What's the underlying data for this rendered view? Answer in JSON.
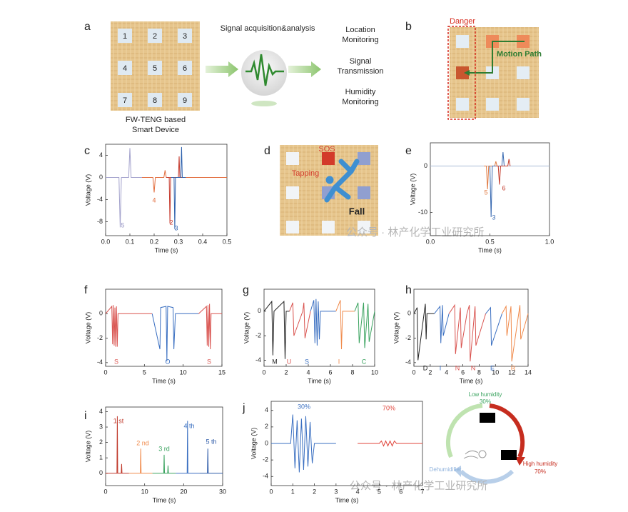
{
  "panel_labels": [
    "a",
    "b",
    "c",
    "d",
    "e",
    "f",
    "g",
    "h",
    "i",
    "j"
  ],
  "watermark": [
    "公众号 · 林产化学工业研究所",
    "公众号 · 林产化学工业研究所"
  ],
  "diagram_a": {
    "tiles": [
      "1",
      "2",
      "3",
      "4",
      "5",
      "6",
      "7",
      "8",
      "9"
    ],
    "device": [
      "FW-TENG based",
      "Smart Device"
    ],
    "process": "Signal acquisition&analysis",
    "outputs": [
      [
        "Location",
        "Monitoring"
      ],
      [
        "Signal",
        "Transmission"
      ],
      [
        "Humidity",
        "Monitoring"
      ]
    ]
  },
  "diagram_b": {
    "zone": "Danger",
    "path": "Motion Path"
  },
  "diagram_d": {
    "alarm": "SOS",
    "action": "Tapping",
    "event": "Fall"
  },
  "humidity_cycle": {
    "low": "Low humidity",
    "low_value": "30%",
    "high": "High humidity",
    "high_value": "70%",
    "device": "Dehumidifier"
  },
  "chart_data": [
    {
      "type": "line",
      "xlabel": "Time (s)",
      "ylabel": "Voltage (V)",
      "xlim": [
        0,
        0.5
      ],
      "ylim": [
        -10.5,
        6
      ],
      "xticks": [
        {
          "value": 0,
          "label": "0.0"
        },
        0.1,
        0.2,
        0.3,
        0.4,
        0.5
      ],
      "yticks": [
        4,
        0,
        -4,
        -8
      ],
      "series": [
        {
          "color": "#a3a2cc",
          "x": [
            0,
            0.055,
            0.06,
            0.065,
            0.095,
            0.1,
            0.105,
            0.15
          ],
          "values": [
            0,
            0,
            -9,
            0,
            0,
            5.3,
            0,
            0
          ]
        },
        {
          "color": "#e26c3c",
          "x": [
            0.15,
            0.195,
            0.2,
            0.205,
            0.24,
            0.245,
            0.25,
            0.5
          ],
          "values": [
            0,
            0,
            -2.7,
            0,
            0,
            1.3,
            0,
            0
          ]
        },
        {
          "color": "#c63a2e",
          "x": [
            0.25,
            0.262,
            0.265,
            0.268,
            0.3,
            0.303,
            0.306,
            0.33
          ],
          "values": [
            0,
            0,
            -8.3,
            0,
            0,
            3.8,
            0,
            0
          ]
        },
        {
          "color": "#2f62ad",
          "x": [
            0.27,
            0.282,
            0.285,
            0.288,
            0.31,
            0.313,
            0.316,
            0.33
          ],
          "values": [
            0,
            0,
            -9.3,
            0,
            0,
            5.5,
            0,
            0
          ]
        }
      ],
      "annotations": [
        {
          "text": "5",
          "color": "#9a99c6"
        },
        {
          "text": "4",
          "color": "#e26c3c"
        },
        {
          "text": "2",
          "color": "#c63a2e"
        },
        {
          "text": "3",
          "color": "#2f62ad"
        }
      ]
    },
    {
      "type": "line",
      "xlabel": "Time (s)",
      "ylabel": "Voltage (V)",
      "xlim": [
        0,
        1
      ],
      "ylim": [
        -15,
        5
      ],
      "xticks": [
        {
          "value": 0,
          "label": "0.0"
        },
        0.5,
        {
          "value": 1,
          "label": "1.0"
        }
      ],
      "yticks": [
        0,
        -10
      ],
      "series": [
        {
          "color": "#a9bad6",
          "x": [
            0,
            1
          ],
          "values": [
            0,
            0
          ]
        },
        {
          "color": "#e07b43",
          "x": [
            0.45,
            0.47,
            0.48,
            0.49,
            0.54,
            0.55,
            0.56
          ],
          "values": [
            0,
            0,
            -5,
            0,
            0,
            1,
            0
          ]
        },
        {
          "color": "#3768b0",
          "x": [
            0.5,
            0.51,
            0.52,
            0.6,
            0.61,
            0.62
          ],
          "values": [
            0,
            -11,
            0,
            0,
            3,
            0
          ]
        },
        {
          "color": "#c43c2d",
          "x": [
            0.55,
            0.57,
            0.58,
            0.59,
            0.65,
            0.66,
            0.67
          ],
          "values": [
            0,
            0,
            -4,
            0,
            0,
            1.5,
            0
          ]
        }
      ],
      "annotations": [
        {
          "text": "5",
          "color": "#e07b43"
        },
        {
          "text": "6",
          "color": "#c43c2d"
        },
        {
          "text": "3",
          "color": "#3768b0"
        }
      ]
    },
    {
      "type": "line",
      "xlabel": "Time (s)",
      "ylabel": "Voltage (V)",
      "xlim": [
        0,
        15
      ],
      "ylim": [
        -4.3,
        2
      ],
      "xticks": [
        0,
        5,
        10,
        15
      ],
      "yticks": [
        0,
        -2,
        -4
      ],
      "series": [
        {
          "color": "#d9534f",
          "x": [
            0,
            0.8,
            0.9,
            1.0,
            1.1,
            1.2,
            1.3,
            1.4,
            1.5,
            1.6,
            6
          ],
          "values": [
            0,
            0.6,
            -2.5,
            0.7,
            -2.6,
            0.5,
            -2.7,
            0.6,
            -2.7,
            0,
            0
          ]
        },
        {
          "color": "#3a6fc1",
          "x": [
            6,
            7.0,
            7.1,
            7.8,
            7.9,
            8.0,
            8.7,
            8.8,
            9.0,
            12
          ],
          "values": [
            0,
            -2.9,
            0.5,
            0.6,
            -3.9,
            0.6,
            0.5,
            -2.9,
            0,
            0
          ]
        },
        {
          "color": "#d9534f",
          "x": [
            12,
            13.0,
            13.1,
            13.2,
            13.3,
            13.4,
            13.5,
            13.6,
            15
          ],
          "values": [
            0,
            0.6,
            -2.6,
            0.7,
            -2.7,
            0.8,
            -2.9,
            0,
            0
          ]
        }
      ],
      "annotations": [
        {
          "text": "S",
          "color": "#d9534f"
        },
        {
          "text": "O",
          "color": "#3a6fc1"
        },
        {
          "text": "S",
          "color": "#d9534f"
        }
      ]
    },
    {
      "type": "line",
      "xlabel": "Time (s)",
      "ylabel": "Voltage (V)",
      "xlim": [
        0,
        10
      ],
      "ylim": [
        -4.5,
        1.8
      ],
      "xticks": [
        0,
        2,
        4,
        6,
        8,
        10
      ],
      "yticks": [
        0,
        -2,
        -4
      ],
      "series": [
        {
          "color": "#222222",
          "x": [
            0,
            0.7,
            0.8,
            0.9,
            1.8,
            1.9,
            2.0,
            2.3
          ],
          "values": [
            0,
            0.8,
            -3.6,
            0,
            0.8,
            -3.9,
            0,
            0
          ]
        },
        {
          "color": "#d9534f",
          "x": [
            2.3,
            2.6,
            2.7,
            3.5,
            3.6,
            3.7,
            4.2
          ],
          "values": [
            0,
            0.7,
            -2.0,
            0,
            0.7,
            -2.2,
            0
          ]
        },
        {
          "color": "#3a6fc1",
          "x": [
            4.2,
            4.5,
            4.6,
            4.7,
            4.8,
            4.9,
            5.0,
            5.1,
            6.5
          ],
          "values": [
            0,
            0.9,
            -2.6,
            1.0,
            -2.8,
            0.8,
            -2.3,
            0,
            0
          ]
        },
        {
          "color": "#f08a4b",
          "x": [
            6.5,
            6.9,
            7.0,
            7.1,
            8.2
          ],
          "values": [
            0,
            0.9,
            -3.1,
            0,
            0
          ]
        },
        {
          "color": "#3aa35f",
          "x": [
            8.2,
            8.5,
            8.6,
            9.0,
            9.1,
            9.4,
            9.5,
            10
          ],
          "values": [
            0,
            0.7,
            -2.6,
            0.7,
            -3.0,
            0.6,
            -2.5,
            0
          ]
        }
      ],
      "annotations": [
        {
          "text": "M",
          "color": "#222222"
        },
        {
          "text": "U",
          "color": "#d9534f"
        },
        {
          "text": "S",
          "color": "#3a6fc1"
        },
        {
          "text": "I",
          "color": "#f08a4b"
        },
        {
          "text": "C",
          "color": "#3aa35f"
        }
      ]
    },
    {
      "type": "line",
      "xlabel": "Time (s)",
      "ylabel": "Voltage (V)",
      "xlim": [
        0,
        14
      ],
      "ylim": [
        -4.3,
        2
      ],
      "xticks": [
        0,
        2,
        4,
        6,
        8,
        10,
        12,
        14
      ],
      "yticks": [
        0,
        -2,
        -4
      ],
      "series": [
        {
          "color": "#222222",
          "x": [
            0,
            0.4,
            0.5,
            1.4,
            1.5,
            1.6,
            2.5
          ],
          "values": [
            0,
            0.5,
            -3.8,
            0.8,
            -2.1,
            0,
            0
          ]
        },
        {
          "color": "#3a6fc1",
          "x": [
            2.5,
            3.2,
            3.3,
            3.5,
            3.6,
            4.3
          ],
          "values": [
            0,
            0.6,
            -2.4,
            0.7,
            -1.8,
            0
          ]
        },
        {
          "color": "#d9534f",
          "x": [
            4.3,
            5.0,
            5.1,
            5.7,
            5.8,
            6.5
          ],
          "values": [
            0,
            0.7,
            -3.3,
            0.5,
            -2.8,
            0
          ]
        },
        {
          "color": "#d9534f",
          "x": [
            6.5,
            6.8,
            6.9,
            7.5,
            7.6,
            8.8
          ],
          "values": [
            0,
            0.7,
            -3.9,
            0.6,
            -2.6,
            0
          ]
        },
        {
          "color": "#3a6fc1",
          "x": [
            8.8,
            9.4,
            9.5,
            10.8
          ],
          "values": [
            0,
            0.5,
            -2.6,
            0
          ]
        },
        {
          "color": "#f08a4b",
          "x": [
            10.8,
            11.3,
            11.4,
            11.9,
            12.0,
            13.0,
            13.1,
            14
          ],
          "values": [
            0,
            0.6,
            -1.8,
            0.6,
            -3.9,
            0.7,
            -2.1,
            0
          ]
        }
      ],
      "annotations": [
        {
          "text": "D",
          "color": "#222222"
        },
        {
          "text": "I",
          "color": "#3a6fc1"
        },
        {
          "text": "N",
          "color": "#d9534f"
        },
        {
          "text": "N",
          "color": "#d9534f"
        },
        {
          "text": "E",
          "color": "#3a6fc1"
        },
        {
          "text": "R",
          "color": "#f08a4b"
        }
      ]
    },
    {
      "type": "line",
      "xlabel": "Time (s)",
      "ylabel": "Voltage (V)",
      "xlim": [
        0,
        30
      ],
      "ylim": [
        -0.8,
        4.3
      ],
      "xticks": [
        0,
        10,
        20,
        30
      ],
      "yticks": [
        0,
        1,
        2,
        3,
        4
      ],
      "series": [
        {
          "color": "#c0392b",
          "x": [
            0,
            2.9,
            3.0,
            3.1,
            4.0,
            4.1,
            4.2,
            6
          ],
          "values": [
            0,
            0,
            3.7,
            0,
            0,
            0.6,
            0,
            0
          ]
        },
        {
          "color": "#f08a4b",
          "x": [
            6,
            8.9,
            9.0,
            9.1,
            12
          ],
          "values": [
            0,
            0,
            1.6,
            0,
            0
          ]
        },
        {
          "color": "#3aa35f",
          "x": [
            12,
            14.9,
            15.0,
            15.1,
            15.9,
            16.0,
            16.1,
            18
          ],
          "values": [
            0,
            0,
            1.2,
            0,
            0,
            0.5,
            0,
            0
          ]
        },
        {
          "color": "#3a6fc1",
          "x": [
            18,
            20.9,
            21.0,
            21.1,
            24
          ],
          "values": [
            0,
            0,
            3.4,
            0,
            0
          ]
        },
        {
          "color": "#2d5aa8",
          "x": [
            24,
            26.1,
            26.2,
            26.3,
            30
          ],
          "values": [
            0,
            0,
            1.6,
            0,
            0
          ]
        }
      ],
      "annotations": [
        {
          "text": "1 st",
          "color": "#c0392b"
        },
        {
          "text": "2 nd",
          "color": "#f08a4b"
        },
        {
          "text": "3 rd",
          "color": "#3aa35f"
        },
        {
          "text": "4 th",
          "color": "#3a6fc1"
        },
        {
          "text": "5 th",
          "color": "#2d5aa8"
        }
      ]
    },
    {
      "type": "line",
      "xlabel": "Time (s)",
      "ylabel": "Voltage (V)",
      "xlim": [
        0,
        7
      ],
      "ylim": [
        -5.1,
        5.1
      ],
      "xticks": [
        0,
        1,
        2,
        3,
        4,
        5,
        6,
        7
      ],
      "yticks": [
        4,
        2,
        0,
        -2,
        -4
      ],
      "series": [
        {
          "color": "#3a6fc1",
          "x": [
            0,
            0.9,
            1.0,
            1.1,
            1.2,
            1.3,
            1.4,
            1.5,
            1.6,
            1.7,
            1.8,
            1.9,
            2.0,
            3
          ],
          "values": [
            0,
            0,
            3.5,
            -3.0,
            2.8,
            -3.5,
            3.0,
            -3.2,
            3.3,
            -2.8,
            2.6,
            -2.4,
            0,
            0
          ]
        },
        {
          "color": "#e0443b",
          "x": [
            4,
            5.0,
            5.1,
            5.2,
            5.3,
            5.4,
            5.5,
            5.6,
            5.7,
            5.8,
            7
          ],
          "values": [
            0,
            0,
            0.3,
            -0.3,
            0.3,
            -0.3,
            0.3,
            -0.3,
            0.3,
            0,
            0
          ]
        }
      ],
      "annotations": [
        {
          "text": "30%",
          "color": "#3a6fc1"
        },
        {
          "text": "70%",
          "color": "#e0443b"
        }
      ]
    }
  ]
}
